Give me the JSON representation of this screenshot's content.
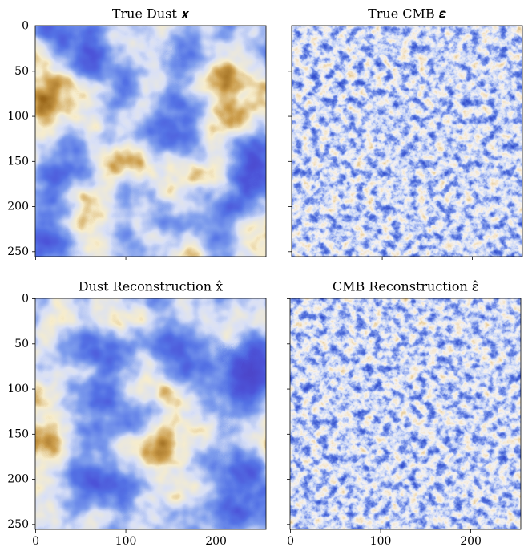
{
  "chart_data": [
    {
      "type": "image",
      "title": "True Dust 𝒙",
      "xlim": [
        -0.5,
        255.5
      ],
      "ylim": [
        255.5,
        -0.5
      ],
      "yticks": [
        0,
        50,
        100,
        150,
        200,
        250
      ]
    },
    {
      "type": "image",
      "title": "True CMB 𝜺",
      "xlim": [
        -0.5,
        255.5
      ],
      "ylim": [
        255.5,
        -0.5
      ]
    },
    {
      "type": "image",
      "title": "Dust Reconstruction x̂",
      "xlim": [
        -0.5,
        255.5
      ],
      "ylim": [
        255.5,
        -0.5
      ],
      "yticks": [
        0,
        50,
        100,
        150,
        200,
        250
      ],
      "xticks": [
        0,
        100,
        200
      ]
    },
    {
      "type": "image",
      "title": "CMB Reconstruction ε̂",
      "xlim": [
        -0.5,
        255.5
      ],
      "ylim": [
        255.5,
        -0.5
      ],
      "xticks": [
        0,
        100,
        200
      ]
    }
  ]
}
